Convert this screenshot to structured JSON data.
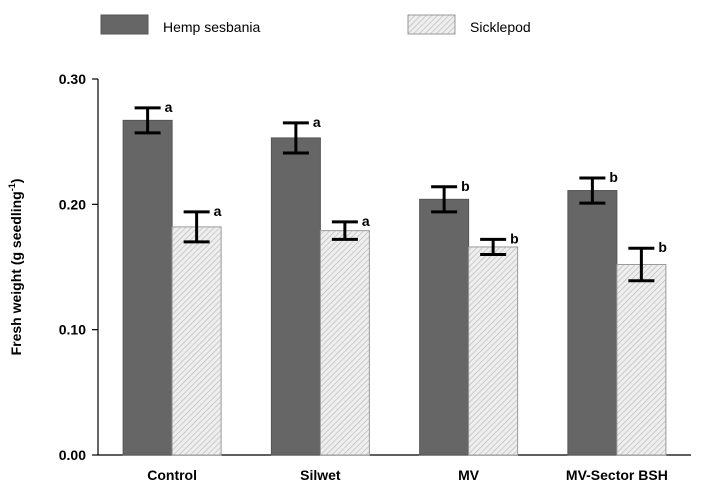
{
  "chart_data": {
    "type": "bar",
    "categories": [
      "Control",
      "Silwet",
      "MV",
      "MV-Sector BSH"
    ],
    "series": [
      {
        "name": "Hemp sesbania",
        "values": [
          0.267,
          0.253,
          0.204,
          0.211
        ],
        "error": [
          0.01,
          0.012,
          0.01,
          0.01
        ],
        "labels": [
          "a",
          "a",
          "b",
          "b"
        ],
        "color": "#666666",
        "pattern": "solid"
      },
      {
        "name": "Sicklepod",
        "values": [
          0.182,
          0.179,
          0.166,
          0.152
        ],
        "error": [
          0.012,
          0.007,
          0.006,
          0.013
        ],
        "labels": [
          "a",
          "a",
          "b",
          "b"
        ],
        "color": "#e6e6e6",
        "pattern": "diagonal-hatch"
      }
    ],
    "xlabel": "",
    "ylabel": "Fresh weight (g seedling",
    "ylabel_superscript": "-1",
    "ylabel_close": ")",
    "ylim": [
      0,
      0.3
    ],
    "yticks": [
      "0.00",
      "0.10",
      "0.20",
      "0.30"
    ],
    "ytick_values": [
      0,
      0.1,
      0.2,
      0.3
    ],
    "grid": false,
    "legend_position": "top"
  }
}
